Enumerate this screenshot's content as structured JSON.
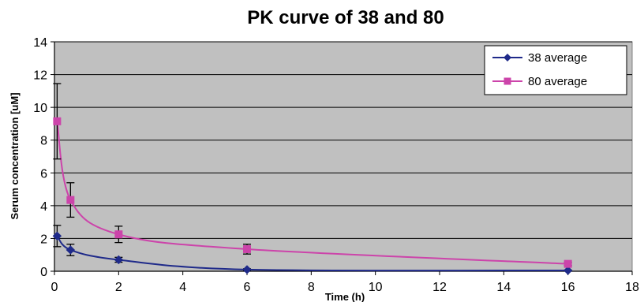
{
  "chart_data": {
    "type": "line",
    "title": "PK curve of 38 and 80",
    "xlabel": "Time (h)",
    "ylabel": "Serum concentration [uM]",
    "xlim": [
      0,
      18
    ],
    "ylim": [
      0,
      14
    ],
    "x_ticks": [
      0,
      2,
      4,
      6,
      8,
      10,
      12,
      14,
      16,
      18
    ],
    "y_ticks": [
      0,
      2,
      4,
      6,
      8,
      10,
      12,
      14
    ],
    "grid": true,
    "legend_position": "top-right",
    "series": [
      {
        "name": "38 average",
        "color": "#1f2a8a",
        "marker": "diamond",
        "x": [
          0.083,
          0.5,
          2,
          6,
          16
        ],
        "y": [
          2.15,
          1.3,
          0.7,
          0.1,
          0.05
        ],
        "err": [
          0.65,
          0.35,
          0.15,
          0.05,
          0.02
        ]
      },
      {
        "name": "80 average",
        "color": "#cc44aa",
        "marker": "square",
        "x": [
          0.083,
          0.5,
          2,
          6,
          16
        ],
        "y": [
          9.15,
          4.35,
          2.25,
          1.35,
          0.45
        ],
        "err": [
          2.3,
          1.05,
          0.5,
          0.3,
          0.1
        ]
      }
    ]
  }
}
